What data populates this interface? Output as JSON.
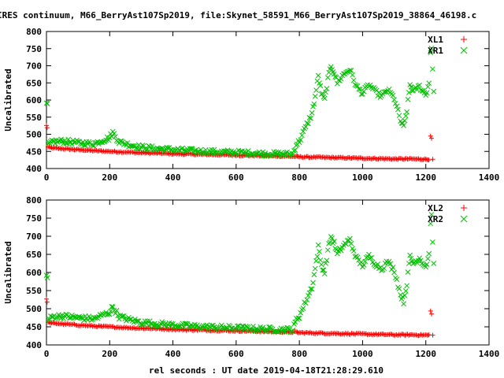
{
  "title": "IRES continuum, M66_BerryAst107Sp2019, file:Skynet_58591_M66_BerryAst107Sp2019_38864_46198.c",
  "xlabel": "rel seconds : UT date 2019-04-18T21:28:29.610",
  "colors": {
    "xl": "#ff0000",
    "xr": "#00c000",
    "axis": "#000000"
  },
  "chart_data": [
    {
      "type": "scatter",
      "ylabel": "Uncalibrated",
      "xlim": [
        0,
        1400
      ],
      "ylim": [
        400,
        800
      ],
      "x_ticks": [
        0,
        200,
        400,
        600,
        800,
        1000,
        1200,
        1400
      ],
      "y_ticks": [
        400,
        450,
        500,
        550,
        600,
        650,
        700,
        750,
        800
      ],
      "legend_position": "top-right",
      "series": [
        {
          "name": "XL1",
          "marker": "plus",
          "points": [
            [
              0,
              525
            ],
            [
              2,
              520
            ],
            [
              5,
              462
            ],
            [
              20,
              460
            ],
            [
              50,
              458
            ],
            [
              100,
              455
            ],
            [
              150,
              452
            ],
            [
              200,
              450
            ],
            [
              250,
              448
            ],
            [
              300,
              446
            ],
            [
              350,
              445
            ],
            [
              400,
              443
            ],
            [
              450,
              442
            ],
            [
              500,
              441
            ],
            [
              550,
              440
            ],
            [
              600,
              439
            ],
            [
              650,
              438
            ],
            [
              700,
              437
            ],
            [
              750,
              436
            ],
            [
              790,
              435
            ],
            [
              800,
              434
            ],
            [
              850,
              433
            ],
            [
              900,
              432
            ],
            [
              950,
              431
            ],
            [
              1000,
              430
            ],
            [
              1050,
              429
            ],
            [
              1100,
              428
            ],
            [
              1150,
              428
            ],
            [
              1200,
              427
            ],
            [
              1210,
              427
            ],
            [
              1215,
              493
            ],
            [
              1218,
              487
            ],
            [
              1222,
              427
            ]
          ]
        },
        {
          "name": "XR1",
          "marker": "cross",
          "points": [
            [
              0,
              590
            ],
            [
              3,
              583
            ],
            [
              6,
              470
            ],
            [
              20,
              478
            ],
            [
              50,
              480
            ],
            [
              100,
              475
            ],
            [
              150,
              472
            ],
            [
              200,
              490
            ],
            [
              210,
              505
            ],
            [
              230,
              478
            ],
            [
              260,
              470
            ],
            [
              300,
              462
            ],
            [
              350,
              458
            ],
            [
              400,
              455
            ],
            [
              450,
              452
            ],
            [
              500,
              450
            ],
            [
              550,
              448
            ],
            [
              600,
              447
            ],
            [
              650,
              445
            ],
            [
              700,
              443
            ],
            [
              750,
              442
            ],
            [
              780,
              442
            ],
            [
              790,
              470
            ],
            [
              800,
              480
            ],
            [
              820,
              520
            ],
            [
              840,
              560
            ],
            [
              850,
              610
            ],
            [
              860,
              670
            ],
            [
              870,
              620
            ],
            [
              880,
              600
            ],
            [
              890,
              660
            ],
            [
              900,
              700
            ],
            [
              910,
              680
            ],
            [
              920,
              650
            ],
            [
              940,
              675
            ],
            [
              960,
              690
            ],
            [
              980,
              640
            ],
            [
              1000,
              620
            ],
            [
              1020,
              645
            ],
            [
              1040,
              625
            ],
            [
              1060,
              610
            ],
            [
              1080,
              630
            ],
            [
              1100,
              605
            ],
            [
              1120,
              540
            ],
            [
              1130,
              520
            ],
            [
              1140,
              570
            ],
            [
              1150,
              645
            ],
            [
              1160,
              625
            ],
            [
              1180,
              640
            ],
            [
              1200,
              615
            ],
            [
              1210,
              650
            ],
            [
              1215,
              740
            ],
            [
              1218,
              755
            ],
            [
              1225,
              625
            ]
          ]
        }
      ]
    },
    {
      "type": "scatter",
      "ylabel": "Uncalibrated",
      "xlabel": "rel seconds : UT date 2019-04-18T21:28:29.610",
      "xlim": [
        0,
        1400
      ],
      "ylim": [
        400,
        800
      ],
      "x_ticks": [
        0,
        200,
        400,
        600,
        800,
        1000,
        1200,
        1400
      ],
      "y_ticks": [
        400,
        450,
        500,
        550,
        600,
        650,
        700,
        750,
        800
      ],
      "legend_position": "top-right",
      "series": [
        {
          "name": "XL2",
          "marker": "plus",
          "points": [
            [
              0,
              525
            ],
            [
              2,
              520
            ],
            [
              5,
              462
            ],
            [
              20,
              460
            ],
            [
              50,
              458
            ],
            [
              100,
              455
            ],
            [
              150,
              452
            ],
            [
              200,
              450
            ],
            [
              250,
              448
            ],
            [
              300,
              446
            ],
            [
              350,
              445
            ],
            [
              400,
              443
            ],
            [
              450,
              442
            ],
            [
              500,
              441
            ],
            [
              550,
              440
            ],
            [
              600,
              439
            ],
            [
              650,
              438
            ],
            [
              700,
              437
            ],
            [
              750,
              436
            ],
            [
              790,
              435
            ],
            [
              800,
              434
            ],
            [
              850,
              433
            ],
            [
              900,
              432
            ],
            [
              950,
              431
            ],
            [
              1000,
              430
            ],
            [
              1050,
              429
            ],
            [
              1100,
              428
            ],
            [
              1150,
              428
            ],
            [
              1200,
              427
            ],
            [
              1210,
              427
            ],
            [
              1215,
              493
            ],
            [
              1218,
              487
            ],
            [
              1222,
              427
            ]
          ]
        },
        {
          "name": "XR2",
          "marker": "cross",
          "points": [
            [
              0,
              590
            ],
            [
              3,
              583
            ],
            [
              6,
              470
            ],
            [
              20,
              478
            ],
            [
              50,
              480
            ],
            [
              100,
              475
            ],
            [
              150,
              472
            ],
            [
              200,
              490
            ],
            [
              210,
              505
            ],
            [
              230,
              478
            ],
            [
              260,
              470
            ],
            [
              300,
              462
            ],
            [
              350,
              458
            ],
            [
              400,
              455
            ],
            [
              450,
              452
            ],
            [
              500,
              450
            ],
            [
              550,
              448
            ],
            [
              600,
              447
            ],
            [
              650,
              445
            ],
            [
              700,
              443
            ],
            [
              750,
              442
            ],
            [
              780,
              442
            ],
            [
              790,
              470
            ],
            [
              800,
              480
            ],
            [
              820,
              520
            ],
            [
              840,
              560
            ],
            [
              850,
              610
            ],
            [
              860,
              670
            ],
            [
              870,
              620
            ],
            [
              880,
              600
            ],
            [
              890,
              660
            ],
            [
              900,
              700
            ],
            [
              910,
              680
            ],
            [
              920,
              650
            ],
            [
              940,
              675
            ],
            [
              960,
              690
            ],
            [
              980,
              640
            ],
            [
              1000,
              620
            ],
            [
              1020,
              645
            ],
            [
              1040,
              625
            ],
            [
              1060,
              610
            ],
            [
              1080,
              630
            ],
            [
              1100,
              605
            ],
            [
              1120,
              540
            ],
            [
              1130,
              520
            ],
            [
              1140,
              570
            ],
            [
              1150,
              645
            ],
            [
              1160,
              625
            ],
            [
              1180,
              640
            ],
            [
              1200,
              615
            ],
            [
              1210,
              650
            ],
            [
              1215,
              740
            ],
            [
              1218,
              755
            ],
            [
              1225,
              625
            ]
          ]
        }
      ]
    }
  ]
}
